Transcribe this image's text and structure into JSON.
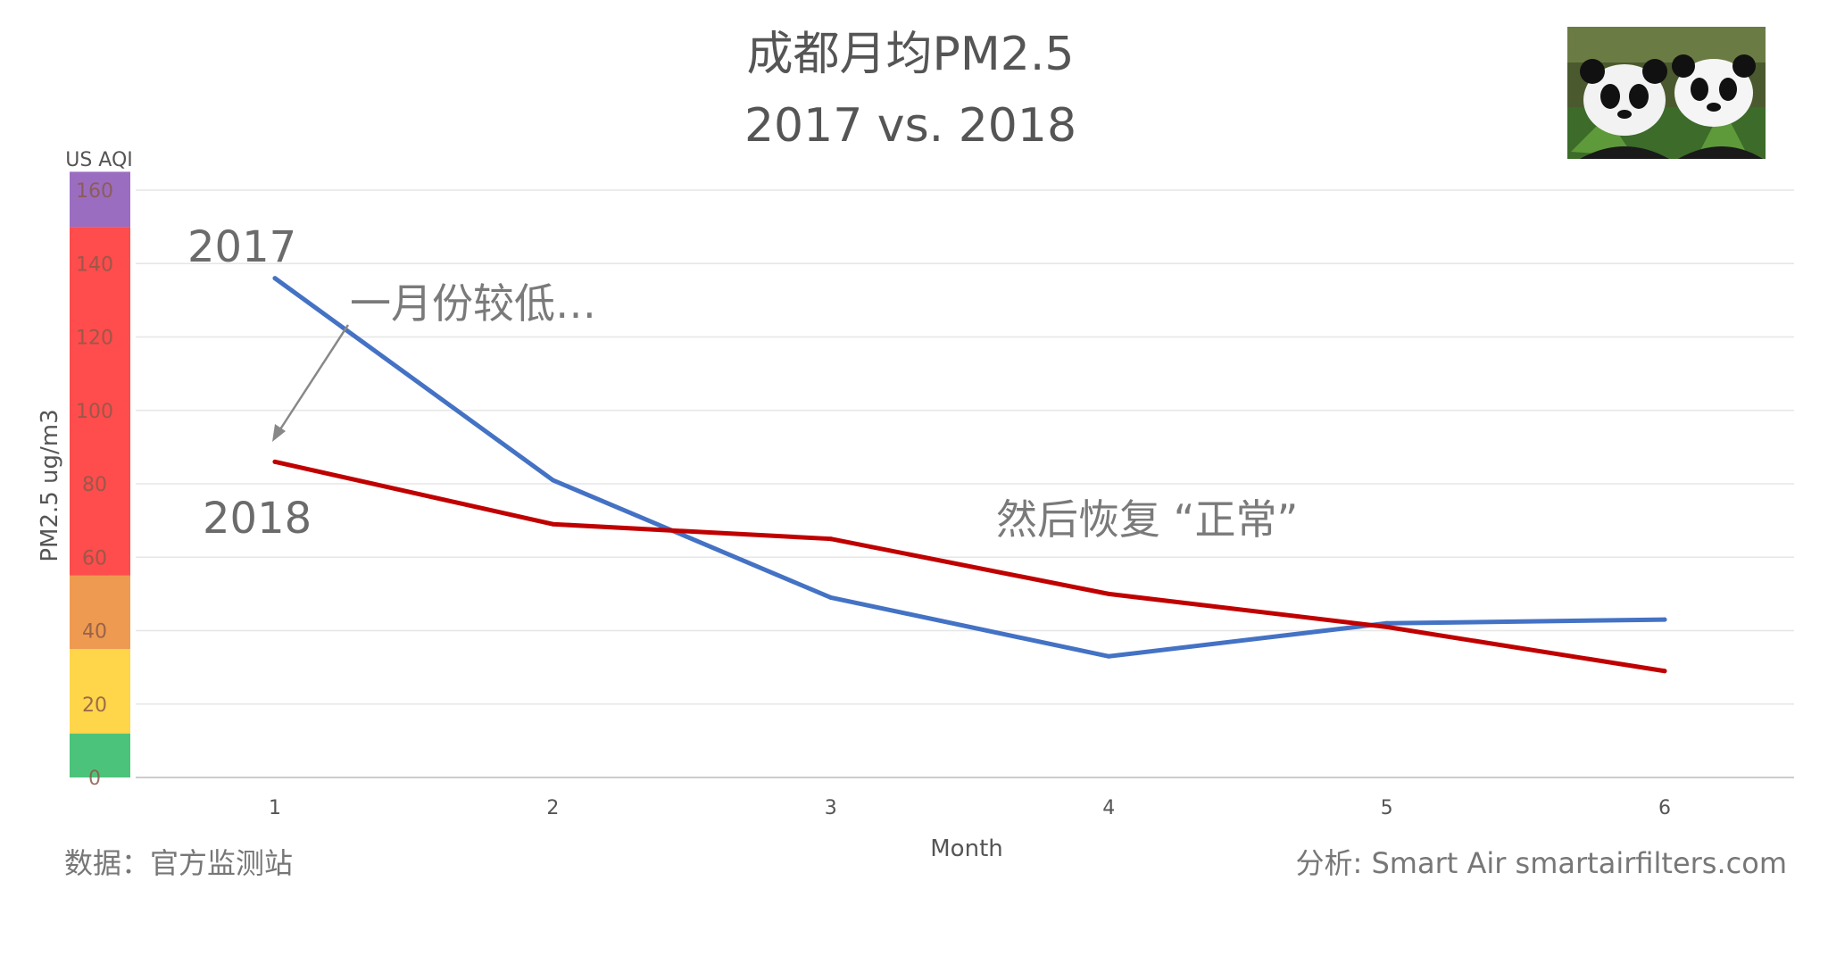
{
  "chart_data": {
    "type": "line",
    "title_line1": "成都月均PM2.5",
    "title_line2": "2017 vs. 2018",
    "xlabel": "Month",
    "ylabel": "PM2.5 ug/m3",
    "aqi_label": "US AQI",
    "x": [
      1,
      2,
      3,
      4,
      5,
      6
    ],
    "x_tick_labels": [
      "1",
      "2",
      "3",
      "4",
      "5",
      "6"
    ],
    "ylim": [
      0,
      160
    ],
    "y_ticks": [
      0,
      20,
      40,
      60,
      80,
      100,
      120,
      140,
      160
    ],
    "y_tick_labels": [
      "0",
      "20",
      "40",
      "60",
      "80",
      "100",
      "120",
      "140",
      "160"
    ],
    "series": [
      {
        "name": "2017",
        "color": "#4472c4",
        "values": [
          136,
          81,
          49,
          33,
          42,
          43
        ]
      },
      {
        "name": "2018",
        "color": "#c00000",
        "values": [
          86,
          69,
          65,
          50,
          41,
          29
        ]
      }
    ],
    "aqi_bands": [
      {
        "from": 0,
        "to": 12,
        "color": "#4cc37a"
      },
      {
        "from": 12,
        "to": 35,
        "color": "#ffd54a"
      },
      {
        "from": 35,
        "to": 55,
        "color": "#ee9a50"
      },
      {
        "from": 55,
        "to": 150,
        "color": "#ff4c4c"
      },
      {
        "from": 150,
        "to": 165,
        "color": "#9b6dc0"
      }
    ],
    "annotations": {
      "jan_low": "一月份较低…",
      "back_normal": "然后恢复 “正常”"
    },
    "grid": true,
    "legend": "none"
  },
  "footer": {
    "source": "数据：官方监测站",
    "analysis": "分析: Smart Air smartairfilters.com"
  },
  "image": {
    "icon": "panda-photo"
  }
}
